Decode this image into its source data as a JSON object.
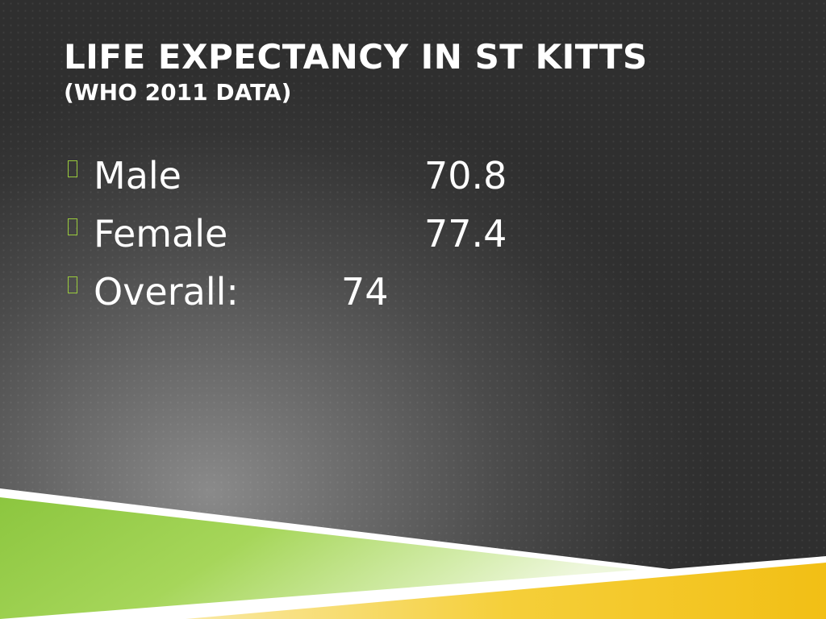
{
  "slide": {
    "title": "LIFE EXPECTANCY IN ST KITTS",
    "subtitle": "(WHO 2011 DATA)"
  },
  "bullets": [
    {
      "label": "Male",
      "value": "70.8"
    },
    {
      "label": "Female",
      "value": "77.4"
    },
    {
      "label": "Overall:",
      "value": "74"
    }
  ],
  "theme": {
    "accent_green": "#8cc63f",
    "accent_yellow": "#f3c21b",
    "text_color": "#ffffff"
  }
}
